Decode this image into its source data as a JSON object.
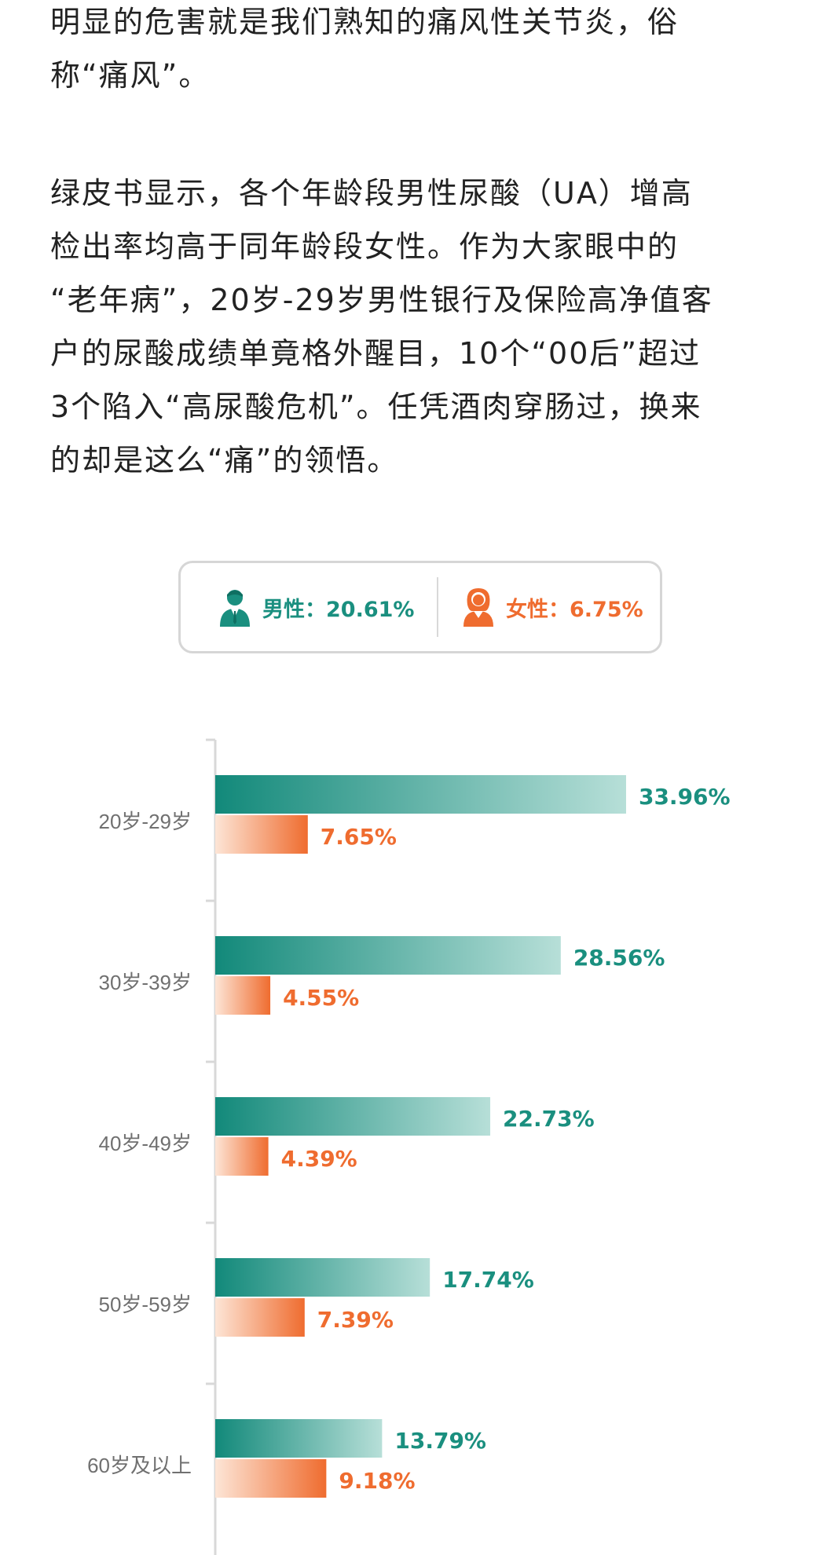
{
  "article": {
    "paragraph1": [
      "明显的危害就是我们熟知的痛风性关节炎，俗",
      "称“痛风”。"
    ],
    "paragraph2": [
      "绿皮书显示，各个年龄段男性尿酸（UA）增高",
      "检出率均高于同年龄段女性。作为大家眼中的",
      "“老年病”，20岁-29岁男性银行及保险高净值客",
      "户的尿酸成绩单竟格外醒目，10个“00后”超过",
      "3个陷入“高尿酸危机”。任凭酒肉穿肠过，换来",
      "的却是这么“痛”的领悟。"
    ]
  },
  "summary": {
    "male_text": "男性：20.61%",
    "female_text": "女性：6.75%",
    "male_icon": "male-person-icon",
    "female_icon": "female-person-icon"
  },
  "colors": {
    "male": "#1a8f7f",
    "female": "#ef6c2f"
  },
  "chart_data": {
    "type": "bar",
    "orientation": "horizontal",
    "categories": [
      "20岁-29岁",
      "30岁-39岁",
      "40岁-49岁",
      "50岁-59岁",
      "60岁及以上"
    ],
    "series": [
      {
        "color": "#1a8f7f",
        "values": [
          33.96,
          28.56,
          22.73,
          17.74,
          13.79
        ],
        "labels": [
          "33.96%",
          "28.56%",
          "22.73%",
          "17.74%",
          "13.79%"
        ]
      },
      {
        "color": "#ef6c2f",
        "values": [
          7.65,
          4.55,
          4.39,
          7.39,
          9.18
        ],
        "labels": [
          "7.65%",
          "4.55%",
          "4.39%",
          "7.39%",
          "9.18%"
        ]
      }
    ],
    "xlim": [
      0,
      40
    ],
    "grid": false
  }
}
